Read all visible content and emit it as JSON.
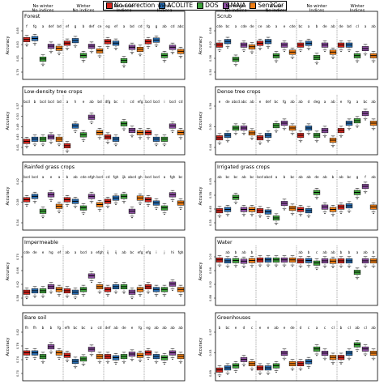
{
  "legend": {
    "items": [
      {
        "label": "No correction",
        "color": "#d7261e"
      },
      {
        "label": "ACOLITE",
        "color": "#2a6fb4"
      },
      {
        "label": "DOS",
        "color": "#3fa33c"
      },
      {
        "label": "MAJA",
        "color": "#8e4fa3"
      },
      {
        "label": "Sen2Cor",
        "color": "#f07f16"
      }
    ]
  },
  "chart_data": [
    {
      "type": "box",
      "title": "Forest",
      "ylabel": "Accuracy",
      "groups": [
        "No winter\nNo indices",
        "Winter\nNo indices",
        "No winter\nIndices",
        "Winter\nIndices"
      ],
      "ytick_labels": [
        "0.79",
        "0.81",
        "0.83",
        "0.85"
      ],
      "ylim": [
        0.78,
        0.87
      ],
      "letters": [
        "f",
        "fg",
        "a",
        "def",
        "bd",
        "ef",
        "g",
        "b",
        "def",
        "ce",
        "eg",
        "ef",
        "a",
        "bd",
        "cd",
        "fg",
        "g",
        "ab",
        "cd",
        "abc"
      ],
      "medians": [
        0.853,
        0.855,
        0.815,
        0.84,
        0.836,
        0.846,
        0.851,
        0.822,
        0.84,
        0.831,
        0.849,
        0.846,
        0.812,
        0.838,
        0.834,
        0.849,
        0.852,
        0.822,
        0.838,
        0.83
      ]
    },
    {
      "type": "box",
      "title": "Scrub",
      "ylabel": "Accuracy",
      "groups": [
        "No winter\nNo indices",
        "Winter\nNo indices",
        "No winter\nIndices",
        "Winter\nIndices"
      ],
      "ytick_labels": [
        "0.50",
        "0.56",
        "0.62",
        "0.68"
      ],
      "ylim": [
        0.46,
        0.72
      ],
      "letters": [
        "cde",
        "bc",
        "a",
        "cde",
        "de",
        "ce",
        "ab",
        "a",
        "e",
        "cde",
        "bc",
        "a",
        "b",
        "de",
        "ab",
        "de",
        "bd",
        "cl",
        "a",
        "ab"
      ],
      "medians": [
        0.64,
        0.66,
        0.56,
        0.64,
        0.63,
        0.65,
        0.66,
        0.58,
        0.64,
        0.6,
        0.64,
        0.65,
        0.57,
        0.64,
        0.6,
        0.64,
        0.64,
        0.58,
        0.62,
        0.58
      ]
    },
    {
      "type": "box",
      "title": "Low-density tree crops",
      "ylabel": "Accuracy",
      "ytick_labels": [
        "0.41",
        "0.45",
        "0.49",
        "0.53",
        "0.57"
      ],
      "ylim": [
        0.38,
        0.59
      ],
      "letters": [
        "bcd",
        "b",
        "bcd",
        "bcd",
        "bd",
        "a",
        "h",
        "e",
        "ab",
        "bd",
        "dfg",
        "bc",
        "i",
        "cd",
        "efg",
        "bcd",
        "bcd",
        "i",
        "bcd",
        "cd"
      ],
      "medians": [
        0.43,
        0.44,
        0.44,
        0.45,
        0.44,
        0.41,
        0.5,
        0.46,
        0.54,
        0.47,
        0.45,
        0.44,
        0.51,
        0.48,
        0.47,
        0.47,
        0.44,
        0.44,
        0.5,
        0.47
      ]
    },
    {
      "type": "box",
      "title": "Dense tree crops",
      "ylabel": "Accuracy",
      "ytick_labels": [
        "0.44",
        "0.50",
        "0.56"
      ],
      "ylim": [
        0.41,
        0.6
      ],
      "letters": [
        "e",
        "de",
        "abcd",
        "abc",
        "ab",
        "e",
        "def",
        "bc",
        "fg",
        "ab",
        "ab",
        "d",
        "deg",
        "a",
        "ab",
        "e",
        "fg",
        "a",
        "bc",
        "ab"
      ],
      "medians": [
        0.47,
        0.48,
        0.51,
        0.51,
        0.49,
        0.47,
        0.48,
        0.52,
        0.53,
        0.51,
        0.48,
        0.51,
        0.48,
        0.5,
        0.46,
        0.5,
        0.53,
        0.54,
        0.57,
        0.53
      ]
    },
    {
      "type": "box",
      "title": "Rainfed grass crops",
      "ylabel": "Accuracy",
      "ytick_labels": [
        "0.34",
        "0.38",
        "0.42"
      ],
      "ylim": [
        0.31,
        0.45
      ],
      "letters": [
        "bcd",
        "bcd",
        "a",
        "e",
        "a",
        "b",
        "ab",
        "cde",
        "efgh",
        "bcd",
        "cd",
        "fgh",
        "ijk",
        "abcd",
        "gh",
        "bcd",
        "bcd",
        "a",
        "fgh",
        "bc"
      ],
      "medians": [
        0.395,
        0.405,
        0.36,
        0.41,
        0.375,
        0.395,
        0.39,
        0.37,
        0.405,
        0.38,
        0.39,
        0.4,
        0.405,
        0.36,
        0.4,
        0.395,
        0.385,
        0.37,
        0.41,
        0.385
      ]
    },
    {
      "type": "box",
      "title": "Irrigated grass crops",
      "ylabel": "Accuracy",
      "ytick_labels": [
        "0.35",
        "0.45",
        "0.55",
        "0.65"
      ],
      "ylim": [
        0.3,
        0.68
      ],
      "letters": [
        "ab",
        "bc",
        "bc",
        "ab",
        "bc",
        "bcd",
        "abcd",
        "a",
        "b",
        "bc",
        "ab",
        "ab",
        "de",
        "ab",
        "b",
        "ab",
        "bc",
        "g",
        "f",
        "ab"
      ],
      "medians": [
        0.44,
        0.45,
        0.55,
        0.45,
        0.45,
        0.44,
        0.43,
        0.38,
        0.5,
        0.46,
        0.45,
        0.44,
        0.59,
        0.47,
        0.45,
        0.47,
        0.48,
        0.59,
        0.64,
        0.47
      ]
    },
    {
      "type": "box",
      "title": "Impermeable",
      "ylabel": "Accuracy",
      "ytick_labels": [
        "0.58",
        "0.62",
        "0.66",
        "0.70"
      ],
      "ylim": [
        0.56,
        0.73
      ],
      "letters": [
        "cde",
        "de",
        "e",
        "hg",
        "ef",
        "ab",
        "a",
        "bcd",
        "a",
        "efgh",
        "ij",
        "ij",
        "ab",
        "bc",
        "efg",
        "efg",
        "i",
        "j",
        "hi",
        "fgh"
      ],
      "medians": [
        0.6,
        0.605,
        0.605,
        0.62,
        0.61,
        0.605,
        0.6,
        0.61,
        0.66,
        0.62,
        0.61,
        0.62,
        0.62,
        0.6,
        0.61,
        0.62,
        0.61,
        0.61,
        0.63,
        0.61
      ]
    },
    {
      "type": "box",
      "title": "Water",
      "ylabel": "Accuracy",
      "ytick_labels": [
        "0.88",
        "0.92",
        "0.96",
        "1.00"
      ],
      "ylim": [
        0.86,
        1.01
      ],
      "letters": [
        "",
        "ab",
        "b",
        "ab",
        "b",
        "",
        "",
        "",
        "",
        "",
        "ab",
        "b",
        "c",
        "ab",
        "ab",
        "b",
        "b",
        "a",
        "ab",
        "b"
      ],
      "medians": [
        1.0,
        0.997,
        0.998,
        0.996,
        0.998,
        1.0,
        1.0,
        1.0,
        1.0,
        1.0,
        0.997,
        0.998,
        0.99,
        0.997,
        0.996,
        0.997,
        0.997,
        0.96,
        0.997,
        0.997
      ]
    },
    {
      "type": "box",
      "title": "Bare soil",
      "ylabel": "Accuracy",
      "ytick_labels": [
        "0.70",
        "0.74",
        "0.78",
        "0.82"
      ],
      "ylim": [
        0.66,
        0.85
      ],
      "letters": [
        "fh",
        "fh",
        "b",
        "b",
        "fg",
        "efh",
        "bc",
        "bc",
        "a",
        "cd",
        "def",
        "ab",
        "de",
        "e",
        "fg",
        "eg",
        "ab",
        "ab",
        "ab",
        "ab"
      ],
      "medians": [
        0.765,
        0.765,
        0.75,
        0.79,
        0.765,
        0.755,
        0.73,
        0.74,
        0.78,
        0.75,
        0.75,
        0.745,
        0.75,
        0.76,
        0.755,
        0.765,
        0.75,
        0.745,
        0.765,
        0.75
      ]
    },
    {
      "type": "box",
      "title": "Greenhouses",
      "ylabel": "Accuracy",
      "ytick_labels": [
        "0.89",
        "0.93",
        "0.97"
      ],
      "ylim": [
        0.88,
        0.99
      ],
      "letters": [
        "b",
        "bc",
        "e",
        "d",
        "c",
        "e",
        "e",
        "ab",
        "e",
        "de",
        "d",
        "c",
        "a",
        "c",
        "cl",
        "b",
        "cl",
        "ab",
        "cl",
        "ab"
      ],
      "medians": [
        0.9,
        0.905,
        0.91,
        0.925,
        0.915,
        0.905,
        0.905,
        0.91,
        0.94,
        0.915,
        0.915,
        0.92,
        0.95,
        0.94,
        0.93,
        0.93,
        0.94,
        0.96,
        0.95,
        0.94
      ]
    }
  ]
}
